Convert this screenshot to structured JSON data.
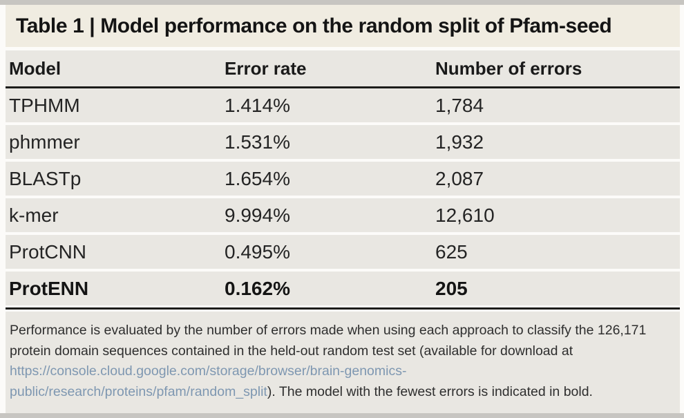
{
  "title": "Table 1 | Model performance on the random split of Pfam-seed",
  "table": {
    "columns": {
      "model": "Model",
      "error_rate": "Error rate",
      "errors": "Number of errors"
    },
    "rows": [
      {
        "model": "TPHMM",
        "error_rate": "1.414%",
        "errors": "1,784"
      },
      {
        "model": "phmmer",
        "error_rate": "1.531%",
        "errors": "1,932"
      },
      {
        "model": "BLASTp",
        "error_rate": "1.654%",
        "errors": "2,087"
      },
      {
        "model": "k-mer",
        "error_rate": "9.994%",
        "errors": "12,610"
      },
      {
        "model": "ProtCNN",
        "error_rate": "0.495%",
        "errors": "625"
      },
      {
        "model": "ProtENN",
        "error_rate": "0.162%",
        "errors": "205"
      }
    ],
    "best_model": "ProtENN"
  },
  "footnote": {
    "text_before_link": "Performance is evaluated by the number of errors made when using each approach to classify the 126,171 protein domain sequences contained in the held-out random test set (available for download at ",
    "link_text": "https://console.cloud.google.com/storage/browser/brain-genomics-public/research/proteins/pfam/random_split",
    "text_after_link": "). The model with the fewest errors is indicated in bold."
  },
  "chart_data": {
    "type": "table",
    "title": "Table 1 | Model performance on the random split of Pfam-seed",
    "columns": [
      "Model",
      "Error rate",
      "Number of errors"
    ],
    "rows": [
      [
        "TPHMM",
        "1.414%",
        "1,784"
      ],
      [
        "phmmer",
        "1.531%",
        "1,932"
      ],
      [
        "BLASTp",
        "1.654%",
        "2,087"
      ],
      [
        "k-mer",
        "9.994%",
        "12,610"
      ],
      [
        "ProtCNN",
        "0.495%",
        "625"
      ],
      [
        "ProtENN",
        "0.162%",
        "205"
      ]
    ]
  },
  "colors": {
    "title_band_bg": "#f0ece1",
    "row_bg": "#e9e7e2",
    "rule": "#1c1c1a",
    "link": "#7e97b1",
    "outer_strip": "#c7c5c1"
  }
}
